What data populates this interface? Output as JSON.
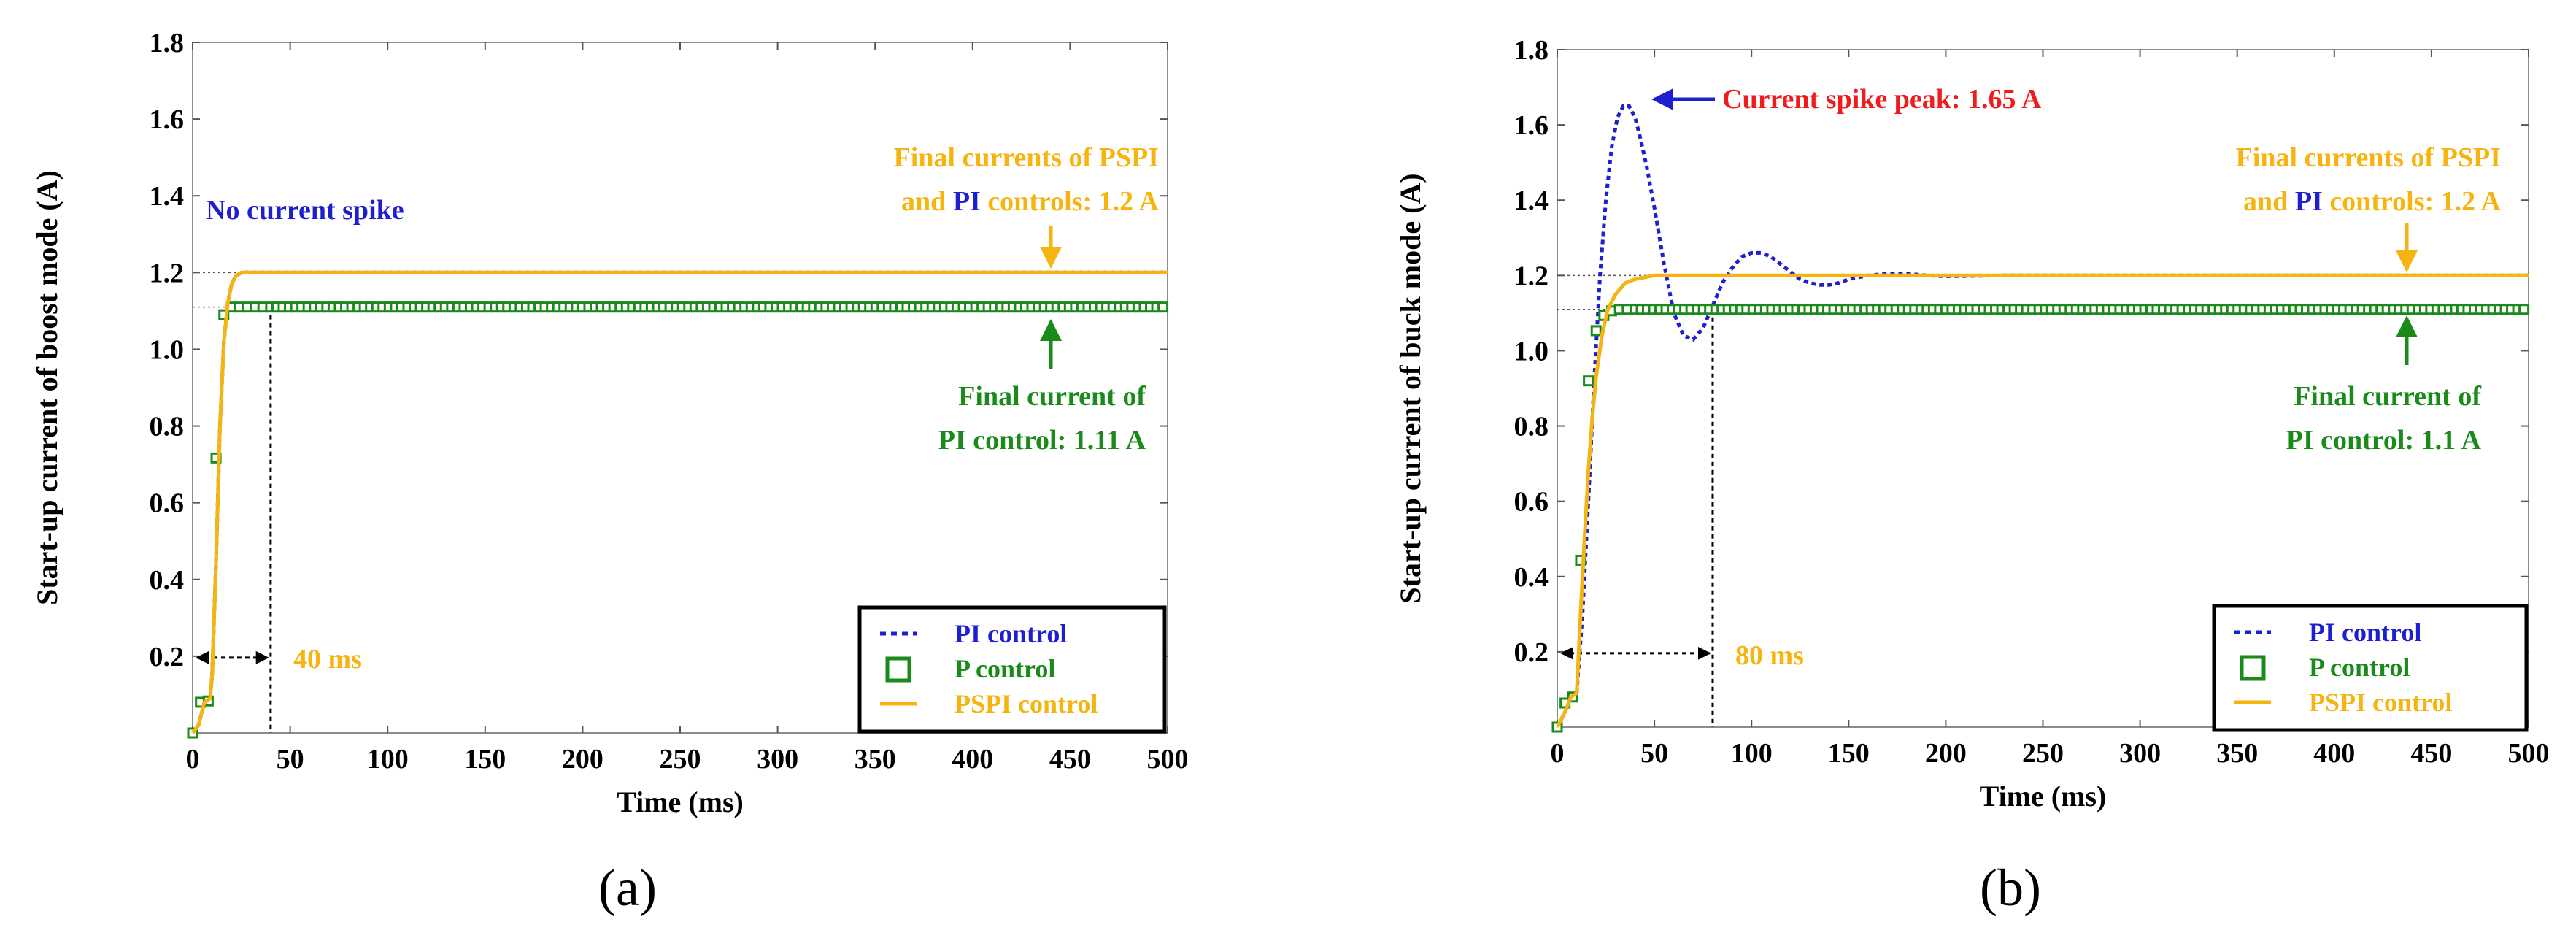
{
  "colors": {
    "pi": "#1f1fd2",
    "p": "#1a8a1a",
    "pspi": "#f5b40f",
    "spike_text": "#ee1c1c",
    "guide": "#000000"
  },
  "chart_data": [
    {
      "type": "line",
      "panel_label": "(a)",
      "xlabel": "Time (ms)",
      "ylabel": "Start-up current of boost mode (A)",
      "xlim": [
        0,
        500
      ],
      "ylim": [
        0,
        1.8
      ],
      "x_ticks": [
        "0",
        "50",
        "100",
        "150",
        "200",
        "250",
        "300",
        "350",
        "400",
        "450",
        "500"
      ],
      "y_ticks": [
        "0.2",
        "0.4",
        "0.6",
        "0.8",
        "1.0",
        "1.2",
        "1.4",
        "1.6",
        "1.8"
      ],
      "grid": false,
      "legend_position": "bottom-right",
      "series": [
        {
          "name": "PI control",
          "style": "dotted",
          "color_key": "pi",
          "x": [
            0,
            3,
            6,
            9,
            10,
            12,
            14,
            16,
            18,
            20,
            22,
            25,
            30,
            40,
            500
          ],
          "y": [
            0,
            0.02,
            0.08,
            0.09,
            0.15,
            0.45,
            0.8,
            1.02,
            1.12,
            1.17,
            1.19,
            1.2,
            1.2,
            1.2,
            1.2
          ]
        },
        {
          "name": "P control",
          "style": "square-markers",
          "color_key": "p",
          "x": [
            0,
            4,
            7,
            10,
            13,
            16,
            19,
            22,
            25,
            30,
            35,
            40,
            500
          ],
          "y": [
            0,
            0.08,
            0.08,
            0.09,
            1.03,
            1.09,
            1.11,
            1.11,
            1.11,
            1.11,
            1.11,
            1.11,
            1.11
          ]
        },
        {
          "name": "PSPI control",
          "style": "solid",
          "color_key": "pspi",
          "x": [
            0,
            3,
            6,
            9,
            10,
            12,
            14,
            16,
            18,
            20,
            22,
            25,
            30,
            40,
            500
          ],
          "y": [
            0,
            0.02,
            0.08,
            0.09,
            0.15,
            0.45,
            0.8,
            1.02,
            1.12,
            1.17,
            1.19,
            1.2,
            1.2,
            1.2,
            1.2
          ]
        }
      ],
      "reference_lines": {
        "y": [
          1.2,
          1.11
        ],
        "x_marker": 40
      },
      "annotations": [
        {
          "id": "no-spike",
          "text": "No current spike",
          "color_key": "pi"
        },
        {
          "id": "final-pspi-1",
          "parts": [
            {
              "text": "Final currents of PSPI",
              "color_key": "pspi"
            }
          ]
        },
        {
          "id": "final-pspi-2",
          "parts": [
            {
              "text": "and ",
              "color_key": "pspi"
            },
            {
              "text": "PI",
              "color_key": "pi"
            },
            {
              "text": " controls: 1.2 A",
              "color_key": "pspi"
            }
          ]
        },
        {
          "id": "final-p-1",
          "text": "Final current of",
          "color_key": "p"
        },
        {
          "id": "final-p-2",
          "text": "PI control: 1.11 A",
          "color_key": "p"
        },
        {
          "id": "time-marker",
          "text": "40 ms",
          "color_key": "pspi"
        }
      ]
    },
    {
      "type": "line",
      "panel_label": "(b)",
      "xlabel": "Time (ms)",
      "ylabel": "Start-up current of buck mode (A)",
      "xlim": [
        0,
        500
      ],
      "ylim": [
        0,
        1.8
      ],
      "x_ticks": [
        "0",
        "50",
        "100",
        "150",
        "200",
        "250",
        "300",
        "350",
        "400",
        "450",
        "500"
      ],
      "y_ticks": [
        "0.2",
        "0.4",
        "0.6",
        "0.8",
        "1.0",
        "1.2",
        "1.4",
        "1.6",
        "1.8"
      ],
      "grid": false,
      "legend_position": "bottom-right",
      "series": [
        {
          "name": "PI control",
          "style": "dotted",
          "color_key": "pi",
          "x": [
            0,
            4,
            7,
            10,
            13,
            16,
            19,
            22,
            25,
            28,
            31,
            34,
            37,
            40,
            43,
            46,
            50,
            55,
            60,
            65,
            70,
            75,
            80,
            85,
            90,
            95,
            100,
            105,
            110,
            115,
            120,
            125,
            130,
            135,
            140,
            145,
            150,
            160,
            170,
            180,
            190,
            200,
            230,
            260,
            300,
            500
          ],
          "y": [
            0,
            0.04,
            0.08,
            0.09,
            0.3,
            0.6,
            0.92,
            1.2,
            1.4,
            1.54,
            1.62,
            1.65,
            1.65,
            1.62,
            1.56,
            1.49,
            1.38,
            1.23,
            1.1,
            1.04,
            1.03,
            1.06,
            1.12,
            1.18,
            1.22,
            1.25,
            1.26,
            1.26,
            1.25,
            1.23,
            1.21,
            1.19,
            1.18,
            1.175,
            1.175,
            1.18,
            1.19,
            1.2,
            1.205,
            1.205,
            1.2,
            1.198,
            1.2,
            1.2,
            1.2,
            1.2
          ]
        },
        {
          "name": "P control",
          "style": "square-markers",
          "color_key": "p",
          "x": [
            0,
            5,
            8,
            10,
            13,
            16,
            19,
            22,
            25,
            30,
            35,
            40,
            45,
            50,
            60,
            500
          ],
          "y": [
            0,
            0.08,
            0.08,
            0.09,
            0.62,
            0.92,
            1.04,
            1.08,
            1.1,
            1.11,
            1.11,
            1.11,
            1.11,
            1.11,
            1.11,
            1.11
          ]
        },
        {
          "name": "PSPI control",
          "style": "solid",
          "color_key": "pspi",
          "x": [
            0,
            4,
            7,
            10,
            12,
            14,
            16,
            18,
            20,
            23,
            26,
            30,
            35,
            40,
            50,
            60,
            80,
            500
          ],
          "y": [
            0,
            0.04,
            0.08,
            0.09,
            0.3,
            0.5,
            0.68,
            0.82,
            0.93,
            1.04,
            1.11,
            1.15,
            1.18,
            1.19,
            1.2,
            1.2,
            1.2,
            1.2
          ]
        }
      ],
      "reference_lines": {
        "y": [
          1.2,
          1.11
        ],
        "x_marker": 80
      },
      "annotations": [
        {
          "id": "spike",
          "text": "Current spike peak: 1.65 A",
          "color_key": "spike_text"
        },
        {
          "id": "final-pspi-1",
          "parts": [
            {
              "text": "Final currents of PSPI",
              "color_key": "pspi"
            }
          ]
        },
        {
          "id": "final-pspi-2",
          "parts": [
            {
              "text": "and ",
              "color_key": "pspi"
            },
            {
              "text": "PI",
              "color_key": "pi"
            },
            {
              "text": " controls: 1.2 A",
              "color_key": "pspi"
            }
          ]
        },
        {
          "id": "final-p-1",
          "text": "Final current of",
          "color_key": "p"
        },
        {
          "id": "final-p-2",
          "text": "PI control: 1.1 A",
          "color_key": "p"
        },
        {
          "id": "time-marker",
          "text": "80 ms",
          "color_key": "pspi"
        }
      ]
    }
  ]
}
